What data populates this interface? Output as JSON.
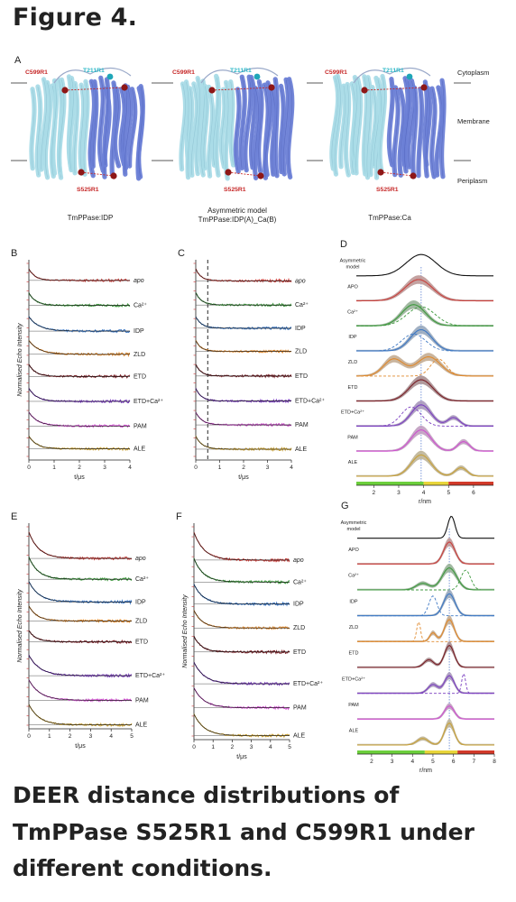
{
  "figure_title": "Figure 4.",
  "caption": "DEER distance distributions of TmPPase S525R1 and C599R1 under different conditions.",
  "colors": {
    "apo": "#c9403c",
    "ca": "#3f9a3f",
    "idp": "#3d78c4",
    "zld": "#e08a2e",
    "etd": "#7a1f26",
    "etdca": "#7b3fc0",
    "pam": "#cf52cf",
    "ale": "#c9a23a",
    "fit": "#111111",
    "chainA": "#a9dbe7",
    "chainB": "#6c7fd6",
    "label_red": "#c62828",
    "label_cyan": "#2bb7c7"
  },
  "panelA": {
    "letter": "A",
    "membrane_labels": [
      "Cytoplasm",
      "Membrane",
      "Periplasm"
    ],
    "structures": [
      {
        "caption": [
          "TmPPase:IDP"
        ],
        "top_left": "C599R1",
        "top_right": "T211R1",
        "bottom": "S525R1"
      },
      {
        "caption": [
          "Asymmetric model",
          "TmPPase:IDP(A)_Ca(B)"
        ],
        "top_left": "C599R1",
        "top_right": "T211R1",
        "bottom": "S525R1"
      },
      {
        "caption": [
          "TmPPase:Ca"
        ],
        "top_left": "C599R1",
        "top_right": "T211R1",
        "bottom": "S525R1"
      }
    ]
  },
  "traces_y_label": "Normalised Echo Intensity",
  "dist_x_label": "r/nm",
  "time_x_label": "t/μs",
  "condition_labels": [
    "apo",
    "Ca²⁺",
    "IDP",
    "ZLD",
    "ETD",
    "ETD+Ca²⁺",
    "PAM",
    "ALE"
  ],
  "dist_labels": [
    "Asymmetric model",
    "APO",
    "Ca²⁺",
    "IDP",
    "ZLD",
    "ETD",
    "ETD+Ca²⁺",
    "PAM",
    "ALE"
  ],
  "chart_data": [
    {
      "panel": "B",
      "type": "line",
      "xlabel": "t/μs",
      "ylabel": "Normalised Echo Intensity",
      "xlim": [
        0,
        4
      ],
      "xticks": [
        0,
        1,
        2,
        3,
        4
      ],
      "series": [
        {
          "name": "apo",
          "decay": 0.55,
          "depth": 0.32
        },
        {
          "name": "Ca²⁺",
          "decay": 0.6,
          "depth": 0.35
        },
        {
          "name": "IDP",
          "decay": 0.9,
          "depth": 0.4
        },
        {
          "name": "ZLD",
          "decay": 0.9,
          "depth": 0.38
        },
        {
          "name": "ETD",
          "decay": 0.6,
          "depth": 0.33
        },
        {
          "name": "ETD+Ca²⁺",
          "decay": 0.7,
          "depth": 0.36
        },
        {
          "name": "PAM",
          "decay": 0.8,
          "depth": 0.38
        },
        {
          "name": "ALE",
          "decay": 0.7,
          "depth": 0.35
        }
      ]
    },
    {
      "panel": "C",
      "type": "line",
      "xlabel": "t/μs",
      "ylabel": "",
      "xlim": [
        0,
        4
      ],
      "xticks": [
        0,
        1,
        2,
        3,
        4
      ],
      "annotation": "dashed line at t = 0.5",
      "series": [
        {
          "name": "apo",
          "decay": 0.5,
          "depth": 0.33
        },
        {
          "name": "Ca²⁺",
          "decay": 0.55,
          "depth": 0.34
        },
        {
          "name": "IDP",
          "decay": 0.55,
          "depth": 0.32
        },
        {
          "name": "ZLD",
          "decay": 0.5,
          "depth": 0.3
        },
        {
          "name": "ETD",
          "decay": 0.5,
          "depth": 0.32
        },
        {
          "name": "ETD+Ca²⁺",
          "decay": 0.55,
          "depth": 0.35
        },
        {
          "name": "PAM",
          "decay": 0.6,
          "depth": 0.35
        },
        {
          "name": "ALE",
          "decay": 0.6,
          "depth": 0.36
        }
      ]
    },
    {
      "panel": "D",
      "type": "area",
      "xlabel": "r/nm",
      "xlim": [
        1.3,
        6.8
      ],
      "xticks": [
        2,
        3,
        4,
        5,
        6
      ],
      "reference_line": 3.9,
      "series": [
        {
          "name": "Asymmetric model",
          "peaks": [
            [
              3.9,
              0.75,
              1
            ]
          ],
          "dashed": []
        },
        {
          "name": "APO",
          "peaks": [
            [
              3.8,
              0.7,
              1
            ]
          ],
          "dashed": []
        },
        {
          "name": "Ca²⁺",
          "peaks": [
            [
              3.6,
              0.6,
              1
            ]
          ],
          "dashed": [
            [
              3.9,
              0.7,
              0.9
            ]
          ]
        },
        {
          "name": "IDP",
          "peaks": [
            [
              3.9,
              0.55,
              1
            ]
          ],
          "dashed": [
            [
              3.6,
              0.6,
              0.8
            ]
          ]
        },
        {
          "name": "ZLD",
          "peaks": [
            [
              2.8,
              0.5,
              0.8
            ],
            [
              4.2,
              0.6,
              0.9
            ]
          ],
          "dashed": [
            [
              4.6,
              0.4,
              0.8
            ]
          ]
        },
        {
          "name": "ETD",
          "peaks": [
            [
              3.9,
              0.6,
              1
            ]
          ],
          "dashed": []
        },
        {
          "name": "ETD+Ca²⁺",
          "peaks": [
            [
              3.9,
              0.5,
              1
            ],
            [
              5.2,
              0.3,
              0.4
            ]
          ],
          "dashed": [
            [
              3.5,
              0.5,
              0.9
            ]
          ]
        },
        {
          "name": "PAM",
          "peaks": [
            [
              3.9,
              0.5,
              1
            ],
            [
              5.6,
              0.3,
              0.45
            ]
          ],
          "dashed": []
        },
        {
          "name": "ALE",
          "peaks": [
            [
              3.9,
              0.5,
              1
            ],
            [
              5.5,
              0.3,
              0.4
            ]
          ],
          "dashed": []
        }
      ]
    },
    {
      "panel": "E",
      "type": "line",
      "xlabel": "t/μs",
      "ylabel": "Normalised Echo Intensity",
      "xlim": [
        0,
        5
      ],
      "xticks": [
        0,
        1,
        2,
        3,
        4,
        5
      ],
      "series": [
        {
          "name": "apo",
          "decay": 1.1,
          "depth": 0.7
        },
        {
          "name": "Ca²⁺",
          "decay": 1.0,
          "depth": 0.6
        },
        {
          "name": "IDP",
          "decay": 1.1,
          "depth": 0.55
        },
        {
          "name": "ZLD",
          "decay": 0.9,
          "depth": 0.4
        },
        {
          "name": "ETD",
          "decay": 0.8,
          "depth": 0.3
        },
        {
          "name": "ETD+Ca²⁺",
          "decay": 1.2,
          "depth": 0.55
        },
        {
          "name": "PAM",
          "decay": 1.2,
          "depth": 0.55
        },
        {
          "name": "ALE",
          "decay": 1.1,
          "depth": 0.55
        }
      ]
    },
    {
      "panel": "F",
      "type": "line",
      "xlabel": "t/μs",
      "ylabel": "Normalised Echo Intensity",
      "xlim": [
        0,
        5
      ],
      "xticks": [
        0,
        1,
        2,
        3,
        4,
        5
      ],
      "series": [
        {
          "name": "apo",
          "decay": 1.2,
          "depth": 0.7
        },
        {
          "name": "Ca²⁺",
          "decay": 1.1,
          "depth": 0.6
        },
        {
          "name": "IDP",
          "decay": 1.1,
          "depth": 0.5
        },
        {
          "name": "ZLD",
          "decay": 1.0,
          "depth": 0.45
        },
        {
          "name": "ETD",
          "decay": 0.9,
          "depth": 0.4
        },
        {
          "name": "ETD+Ca²⁺",
          "decay": 1.2,
          "depth": 0.55
        },
        {
          "name": "PAM",
          "decay": 1.2,
          "depth": 0.5
        },
        {
          "name": "ALE",
          "decay": 1.2,
          "depth": 0.55
        }
      ]
    },
    {
      "panel": "G",
      "type": "area",
      "xlabel": "r/nm",
      "xlim": [
        1.3,
        8
      ],
      "xticks": [
        2,
        3,
        4,
        5,
        6,
        7,
        8
      ],
      "reference_line": 5.8,
      "series": [
        {
          "name": "Asymmetric model",
          "peaks": [
            [
              5.9,
              0.22,
              1
            ]
          ],
          "dashed": []
        },
        {
          "name": "APO",
          "peaks": [
            [
              5.8,
              0.35,
              1
            ]
          ],
          "dashed": []
        },
        {
          "name": "Ca²⁺",
          "peaks": [
            [
              5.8,
              0.45,
              1
            ],
            [
              4.5,
              0.4,
              0.3
            ]
          ],
          "dashed": [
            [
              6.6,
              0.3,
              0.9
            ]
          ]
        },
        {
          "name": "IDP",
          "peaks": [
            [
              5.8,
              0.35,
              1
            ]
          ],
          "dashed": [
            [
              5.0,
              0.25,
              0.9
            ]
          ]
        },
        {
          "name": "ZLD",
          "peaks": [
            [
              5.8,
              0.3,
              1
            ],
            [
              5.0,
              0.2,
              0.4
            ]
          ],
          "dashed": [
            [
              4.3,
              0.12,
              0.9
            ]
          ]
        },
        {
          "name": "ETD",
          "peaks": [
            [
              5.8,
              0.3,
              1
            ],
            [
              4.8,
              0.3,
              0.35
            ]
          ],
          "dashed": []
        },
        {
          "name": "ETD+Ca²⁺",
          "peaks": [
            [
              5.8,
              0.3,
              0.8
            ],
            [
              5.0,
              0.3,
              0.4
            ]
          ],
          "dashed": [
            [
              6.5,
              0.12,
              0.9
            ]
          ]
        },
        {
          "name": "PAM",
          "peaks": [
            [
              5.8,
              0.3,
              0.6
            ]
          ],
          "dashed": []
        },
        {
          "name": "ALE",
          "peaks": [
            [
              5.8,
              0.3,
              1
            ],
            [
              4.5,
              0.35,
              0.3
            ]
          ],
          "dashed": []
        }
      ]
    }
  ]
}
